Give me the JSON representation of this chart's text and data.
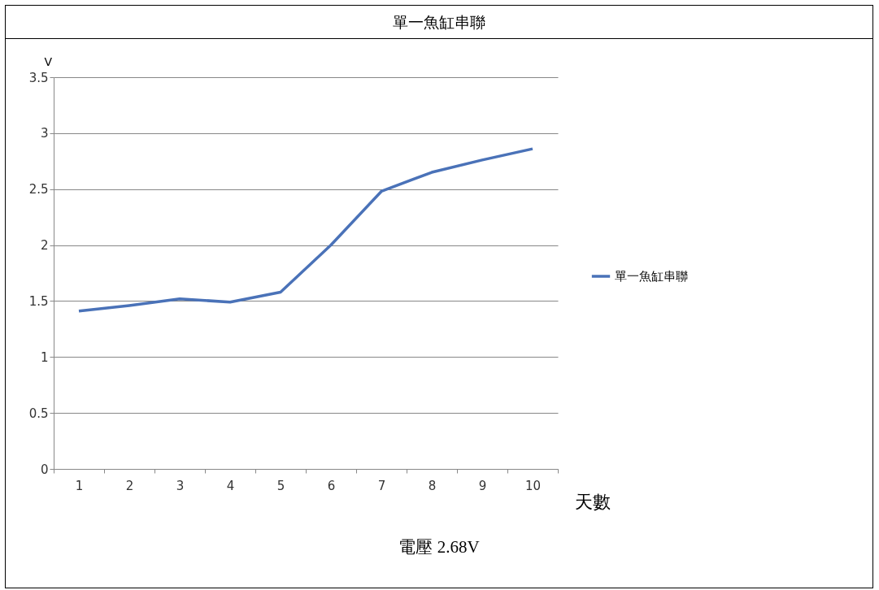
{
  "chart_data": {
    "type": "line",
    "title": "單一魚缸串聯",
    "xlabel": "天數",
    "ylabel": "V",
    "categories": [
      "1",
      "2",
      "3",
      "4",
      "5",
      "6",
      "7",
      "8",
      "9",
      "10"
    ],
    "series": [
      {
        "name": "單一魚缸串聯",
        "color": "#4a72b8",
        "values": [
          1.41,
          1.46,
          1.52,
          1.49,
          1.58,
          2.0,
          2.48,
          2.65,
          2.76,
          2.86
        ]
      }
    ],
    "ylim": [
      0,
      3.5
    ],
    "yticks": [
      0,
      0.5,
      1,
      1.5,
      2,
      2.5,
      3,
      3.5
    ],
    "grid": "y",
    "legend": "right",
    "marker": "none",
    "annotations": [
      "電壓 2.68V"
    ]
  }
}
